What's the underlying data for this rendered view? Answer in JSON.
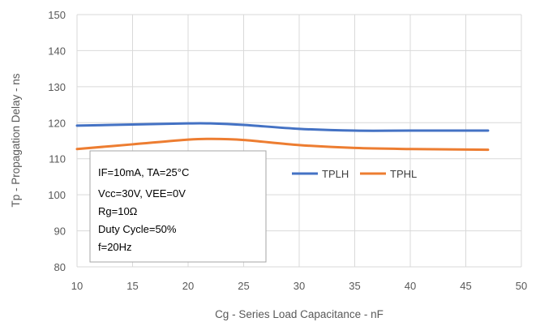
{
  "chart_data": {
    "type": "line",
    "title": "",
    "xlabel": "Cg - Series Load Capacitance - nF",
    "ylabel": "Tp - Propagation Delay - ns",
    "xlim": [
      10,
      50
    ],
    "ylim": [
      80,
      150
    ],
    "x_ticks": [
      "10",
      "15",
      "20",
      "25",
      "30",
      "35",
      "40",
      "45",
      "50"
    ],
    "y_ticks": [
      "80",
      "90",
      "100",
      "110",
      "120",
      "130",
      "140",
      "150"
    ],
    "grid": "horizontal and vertical",
    "legend_position": "inside, right of annotation box",
    "series": [
      {
        "name": "TPLH",
        "color": "#4472C4",
        "x": [
          10,
          15,
          20,
          22,
          25,
          30,
          35,
          40,
          47
        ],
        "y": [
          119.2,
          119.5,
          119.8,
          119.8,
          119.4,
          118.3,
          117.8,
          117.8,
          117.8
        ]
      },
      {
        "name": "TPHL",
        "color": "#ED7D31",
        "x": [
          10,
          15,
          20,
          22,
          25,
          30,
          35,
          40,
          47
        ],
        "y": [
          112.7,
          114.0,
          115.3,
          115.5,
          115.2,
          113.8,
          113.0,
          112.7,
          112.5
        ]
      }
    ],
    "annotation_lines": [
      "IF=10mA, TA=25°C",
      "Vcc=30V, VEE=0V",
      "Rg=10Ω",
      "Duty Cycle=50%",
      "f=20Hz"
    ]
  }
}
